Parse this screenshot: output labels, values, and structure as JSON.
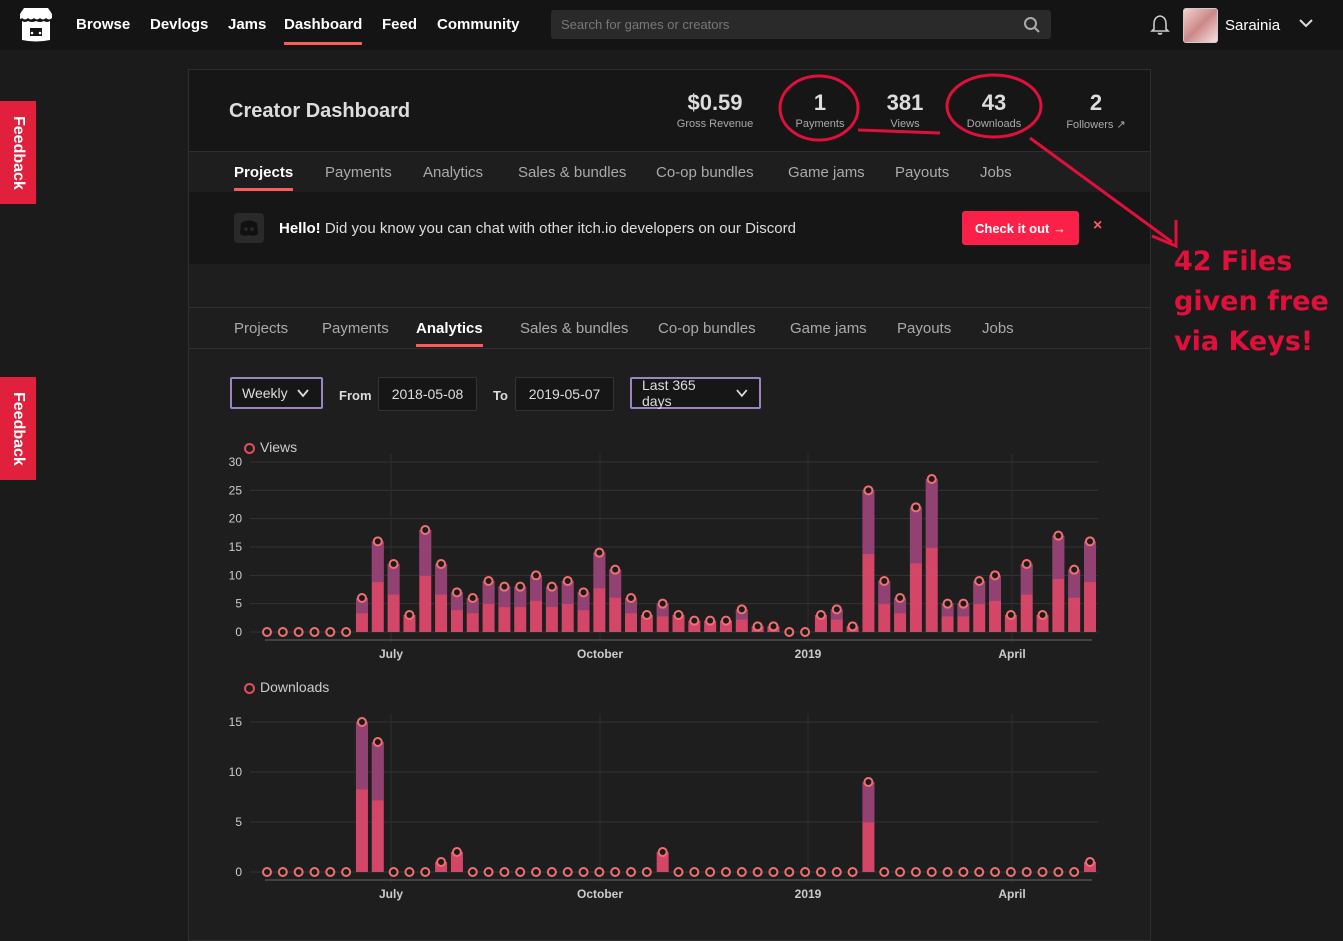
{
  "nav": {
    "items": [
      "Browse",
      "Devlogs",
      "Jams",
      "Dashboard",
      "Feed",
      "Community"
    ],
    "active": "Dashboard",
    "search_placeholder": "Search for games or creators",
    "username": "Sarainia"
  },
  "feedback_label": "Feedback",
  "dashboard": {
    "title": "Creator Dashboard",
    "stats": [
      {
        "value": "$0.59",
        "label": "Gross Revenue"
      },
      {
        "value": "1",
        "label": "Payments"
      },
      {
        "value": "381",
        "label": "Views"
      },
      {
        "value": "43",
        "label": "Downloads"
      },
      {
        "value": "2",
        "label": "Followers ↗"
      }
    ]
  },
  "tabs_top": {
    "items": [
      "Projects",
      "Payments",
      "Analytics",
      "Sales & bundles",
      "Co-op bundles",
      "Game jams",
      "Payouts",
      "Jobs"
    ],
    "active": "Projects"
  },
  "banner": {
    "hello": "Hello!",
    "text": " Did you know you can chat with other itch.io developers on our Discord",
    "button": "Check it out →",
    "close": "×"
  },
  "tabs_bottom": {
    "items": [
      "Projects",
      "Payments",
      "Analytics",
      "Sales & bundles",
      "Co-op bundles",
      "Game jams",
      "Payouts",
      "Jobs"
    ],
    "active": "Analytics"
  },
  "controls": {
    "interval": "Weekly",
    "from_label": "From",
    "from_date": "2018-05-08",
    "to_label": "To",
    "to_date": "2019-05-07",
    "range": "Last 365 days"
  },
  "annotation": {
    "lines": [
      "42 Files",
      "given free",
      "via Keys!"
    ],
    "color": "#e0103b"
  },
  "chart_data": [
    {
      "type": "bar",
      "title": "Views",
      "x_tick_labels": [
        "July",
        "October",
        "2019",
        "April"
      ],
      "y_ticks": [
        0,
        5,
        10,
        15,
        20,
        25,
        30
      ],
      "ylim": [
        0,
        30
      ],
      "values": [
        0,
        0,
        0,
        0,
        0,
        0,
        6,
        16,
        12,
        3,
        18,
        12,
        7,
        6,
        9,
        8,
        8,
        10,
        8,
        9,
        7,
        14,
        11,
        6,
        3,
        5,
        3,
        2,
        2,
        2,
        4,
        1,
        1,
        0,
        0,
        3,
        4,
        1,
        25,
        9,
        6,
        22,
        27,
        5,
        5,
        9,
        10,
        3,
        12,
        3,
        17,
        11,
        16
      ],
      "color": "#e84a70"
    },
    {
      "type": "bar",
      "title": "Downloads",
      "x_tick_labels": [
        "July",
        "October",
        "2019",
        "April"
      ],
      "y_ticks": [
        0,
        5,
        10,
        15
      ],
      "ylim": [
        0,
        15
      ],
      "values": [
        0,
        0,
        0,
        0,
        0,
        0,
        15,
        13,
        0,
        0,
        0,
        1,
        2,
        0,
        0,
        0,
        0,
        0,
        0,
        0,
        0,
        0,
        0,
        0,
        0,
        2,
        0,
        0,
        0,
        0,
        0,
        0,
        0,
        0,
        0,
        0,
        0,
        0,
        9,
        0,
        0,
        0,
        0,
        0,
        0,
        0,
        0,
        0,
        0,
        0,
        0,
        0,
        1
      ],
      "color": "#e84a70"
    }
  ]
}
